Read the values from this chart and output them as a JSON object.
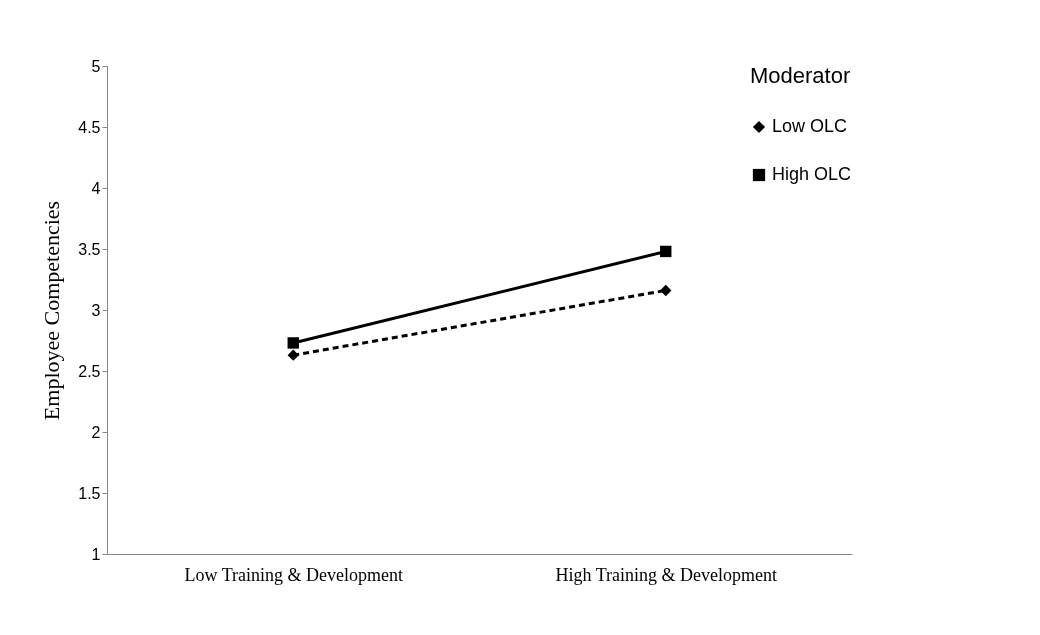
{
  "chart_data": {
    "type": "line",
    "ylabel": "Employee Competencies",
    "legend_title": "Moderator",
    "legend": "top right",
    "grid": false,
    "categories": [
      "Low Training & Development",
      "High Training & Development"
    ],
    "ylim": [
      1,
      5
    ],
    "yticks": [
      1,
      1.5,
      2,
      2.5,
      3,
      3.5,
      4,
      4.5,
      5
    ],
    "series": [
      {
        "name": "Low OLC",
        "color": "#000000",
        "marker": "diamond",
        "line_style": "dashed",
        "values": [
          2.63,
          3.16
        ]
      },
      {
        "name": "High OLC",
        "color": "#000000",
        "marker": "square",
        "line_style": "solid",
        "values": [
          2.73,
          3.48
        ]
      }
    ]
  }
}
